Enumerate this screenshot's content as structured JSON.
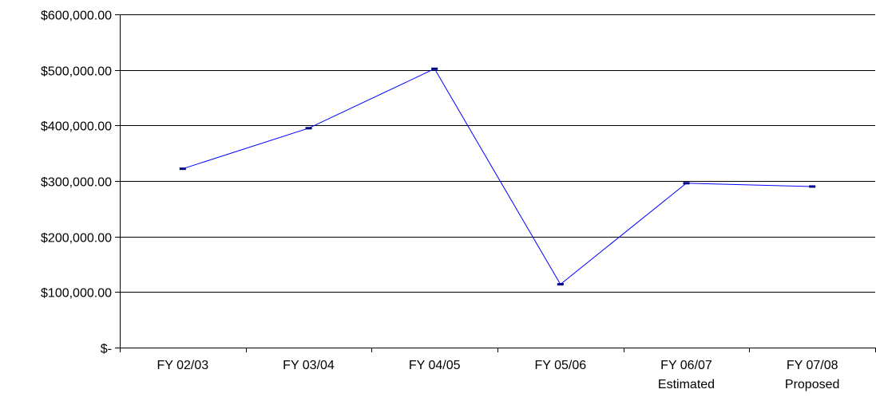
{
  "chart_data": {
    "type": "line",
    "title": "",
    "xlabel": "",
    "ylabel": "",
    "categories": [
      [
        "FY 02/03"
      ],
      [
        "FY 03/04"
      ],
      [
        "FY 04/05"
      ],
      [
        "FY 05/06"
      ],
      [
        "FY 06/07",
        "Estimated"
      ],
      [
        "FY 07/08",
        "Proposed"
      ]
    ],
    "series": [
      {
        "values": [
          322000,
          395000,
          502000,
          114000,
          296000,
          290000
        ]
      }
    ],
    "ylim": [
      0,
      600000
    ],
    "yticks": [
      0,
      100000,
      200000,
      300000,
      400000,
      500000,
      600000
    ],
    "ytick_labels": [
      "$-",
      "$100,000.00",
      "$200,000.00",
      "$300,000.00",
      "$400,000.00",
      "$500,000.00",
      "$600,000.00"
    ],
    "grid": true,
    "legend": "none",
    "colors": {
      "line": "#0000ff",
      "marker": "#000080",
      "grid": "#000000",
      "axis": "#000000"
    }
  }
}
